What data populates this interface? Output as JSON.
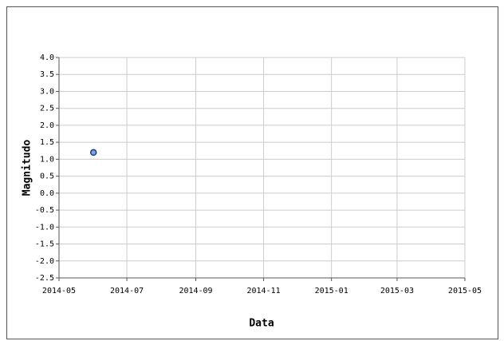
{
  "chart_data": {
    "type": "scatter",
    "xlabel": "Data",
    "ylabel": "Magnitudo",
    "x": [
      "2014-06"
    ],
    "values": [
      1.2
    ],
    "color": "#7fa6e8",
    "edge_color": "#1f3a7a",
    "xlim": [
      "2014-05",
      "2015-05"
    ],
    "xticks": [
      "2014-05",
      "2014-07",
      "2014-09",
      "2014-11",
      "2015-01",
      "2015-03",
      "2015-05"
    ],
    "ylim": [
      -2.5,
      4
    ],
    "yticks": [
      {
        "value": 4,
        "label": "4.0"
      },
      3.5,
      {
        "value": 3,
        "label": "3.0"
      },
      2.5,
      {
        "value": 2,
        "label": "2.0"
      },
      1.5,
      {
        "value": 1,
        "label": "1.0"
      },
      0.5,
      {
        "value": 0,
        "label": "0.0"
      },
      -0.5,
      {
        "value": -1,
        "label": "-1.0"
      },
      -1.5,
      {
        "value": -2,
        "label": "-2.0"
      },
      -2.5
    ],
    "grid": true
  }
}
